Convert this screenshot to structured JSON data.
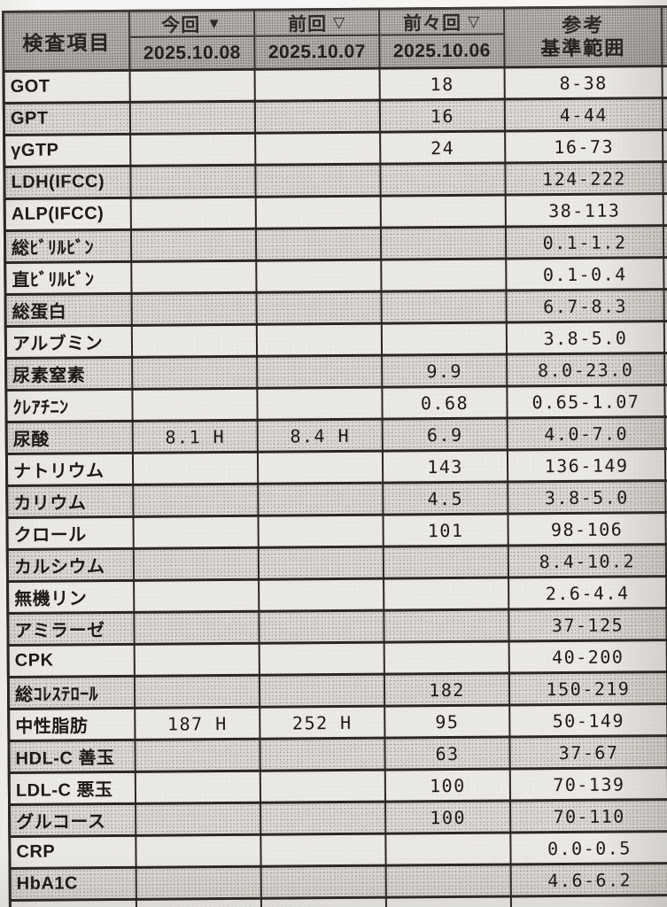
{
  "colors": {
    "paper": "#f4f3f1",
    "header_gray": "#b2b0ac",
    "row_plain": "#ebe9e5",
    "row_shade": "#dcdad5",
    "border": "#2b2723",
    "text": "#1d1a17"
  },
  "table": {
    "header": {
      "item_col": "検査項目",
      "ref_line1": "参考",
      "ref_line2": "基準範囲",
      "visits": [
        {
          "label": "今回",
          "arrow": "▼",
          "arrow_name": "filled-down-triangle-icon",
          "date": "2025.10.08"
        },
        {
          "label": "前回",
          "arrow": "▽",
          "arrow_name": "outline-down-triangle-icon",
          "date": "2025.10.07"
        },
        {
          "label": "前々回",
          "arrow": "▽",
          "arrow_name": "outline-down-triangle-icon",
          "date": "2025.10.06"
        }
      ]
    },
    "rows": [
      {
        "label": "GOT",
        "today": "",
        "prev": "",
        "prev2": "18",
        "ref": "8-38"
      },
      {
        "label": "GPT",
        "today": "",
        "prev": "",
        "prev2": "16",
        "ref": "4-44"
      },
      {
        "label": "γGTP",
        "today": "",
        "prev": "",
        "prev2": "24",
        "ref": "16-73"
      },
      {
        "label": "LDH(IFCC)",
        "today": "",
        "prev": "",
        "prev2": "",
        "ref": "124-222"
      },
      {
        "label": "ALP(IFCC)",
        "today": "",
        "prev": "",
        "prev2": "",
        "ref": "38-113"
      },
      {
        "label": "総ﾋﾞﾘﾙﾋﾞﾝ",
        "today": "",
        "prev": "",
        "prev2": "",
        "ref": "0.1-1.2"
      },
      {
        "label": "直ﾋﾞﾘﾙﾋﾞﾝ",
        "today": "",
        "prev": "",
        "prev2": "",
        "ref": "0.1-0.4"
      },
      {
        "label": "総蛋白",
        "today": "",
        "prev": "",
        "prev2": "",
        "ref": "6.7-8.3"
      },
      {
        "label": "アルブミン",
        "today": "",
        "prev": "",
        "prev2": "",
        "ref": "3.8-5.0"
      },
      {
        "label": "尿素窒素",
        "today": "",
        "prev": "",
        "prev2": "9.9",
        "ref": "8.0-23.0"
      },
      {
        "label": "ｸﾚｱﾁﾆﾝ",
        "today": "",
        "prev": "",
        "prev2": "0.68",
        "ref": "0.65-1.07"
      },
      {
        "label": "尿酸",
        "today": "8.1 H",
        "prev": "8.4 H",
        "prev2": "6.9",
        "ref": "4.0-7.0"
      },
      {
        "label": "ナトリウム",
        "today": "",
        "prev": "",
        "prev2": "143",
        "ref": "136-149"
      },
      {
        "label": "カリウム",
        "today": "",
        "prev": "",
        "prev2": "4.5",
        "ref": "3.8-5.0"
      },
      {
        "label": "クロール",
        "today": "",
        "prev": "",
        "prev2": "101",
        "ref": "98-106"
      },
      {
        "label": "カルシウム",
        "today": "",
        "prev": "",
        "prev2": "",
        "ref": "8.4-10.2"
      },
      {
        "label": "無機リン",
        "today": "",
        "prev": "",
        "prev2": "",
        "ref": "2.6-4.4"
      },
      {
        "label": "アミラーゼ",
        "today": "",
        "prev": "",
        "prev2": "",
        "ref": "37-125"
      },
      {
        "label": "CPK",
        "today": "",
        "prev": "",
        "prev2": "",
        "ref": "40-200"
      },
      {
        "label": "総ｺﾚｽﾃﾛｰﾙ",
        "today": "",
        "prev": "",
        "prev2": "182",
        "ref": "150-219"
      },
      {
        "label": "中性脂肪",
        "today": "187 H",
        "prev": "252 H",
        "prev2": "95",
        "ref": "50-149"
      },
      {
        "label": "HDL-C 善玉",
        "today": "",
        "prev": "",
        "prev2": "63",
        "ref": "37-67"
      },
      {
        "label": "LDL-C 悪玉",
        "today": "",
        "prev": "",
        "prev2": "100",
        "ref": "70-139"
      },
      {
        "label": "グルコース",
        "today": "",
        "prev": "",
        "prev2": "100",
        "ref": "70-110"
      },
      {
        "label": "CRP",
        "today": "",
        "prev": "",
        "prev2": "",
        "ref": "0.0-0.5"
      },
      {
        "label": "HbA1C",
        "today": "",
        "prev": "",
        "prev2": "",
        "ref": "4.6-6.2"
      }
    ]
  }
}
